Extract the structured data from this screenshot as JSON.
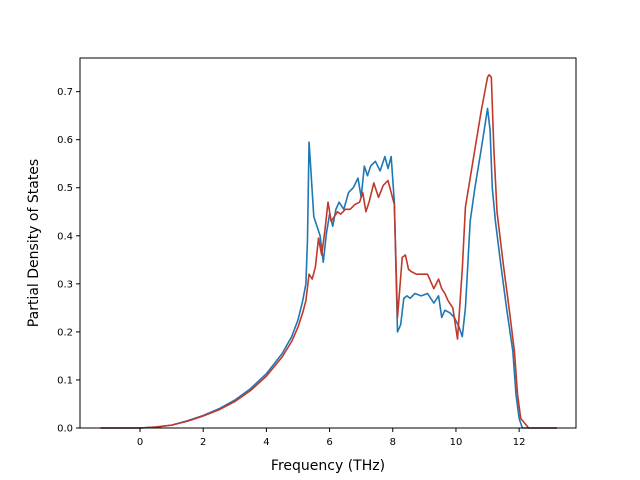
{
  "chart_data": {
    "type": "line",
    "title": "",
    "xlabel": "Frequency (THz)",
    "ylabel": "Partial Density of States",
    "xlim": [
      -1.9,
      13.8
    ],
    "ylim": [
      0.0,
      0.77
    ],
    "xticks": [
      0,
      2,
      4,
      6,
      8,
      10,
      12
    ],
    "yticks": [
      0.0,
      0.1,
      0.2,
      0.3,
      0.4,
      0.5,
      0.6,
      0.7
    ],
    "xtick_labels": [
      "0",
      "2",
      "4",
      "6",
      "8",
      "10",
      "12"
    ],
    "ytick_labels": [
      "0.0",
      "0.1",
      "0.2",
      "0.3",
      "0.4",
      "0.5",
      "0.6",
      "0.7"
    ],
    "grid": false,
    "legend": "none",
    "series": [
      {
        "color": "#1f77b4",
        "x": [
          -1.25,
          -0.5,
          0.0,
          0.5,
          1.0,
          1.5,
          2.0,
          2.5,
          3.0,
          3.5,
          4.0,
          4.5,
          4.8,
          5.0,
          5.15,
          5.25,
          5.3,
          5.35,
          5.4,
          5.5,
          5.7,
          5.8,
          5.9,
          6.0,
          6.1,
          6.2,
          6.3,
          6.45,
          6.6,
          6.75,
          6.9,
          7.0,
          7.1,
          7.2,
          7.3,
          7.45,
          7.6,
          7.75,
          7.85,
          7.95,
          8.05,
          8.15,
          8.25,
          8.35,
          8.45,
          8.55,
          8.7,
          8.9,
          9.1,
          9.3,
          9.45,
          9.55,
          9.65,
          9.8,
          9.95,
          10.1,
          10.2,
          10.3,
          10.45,
          10.6,
          10.8,
          11.0,
          11.08,
          11.15,
          11.25,
          11.4,
          11.6,
          11.8,
          11.9,
          12.0,
          12.1,
          12.3,
          12.6,
          13.2
        ],
        "y": [
          0.0,
          0.0,
          0.0,
          0.002,
          0.006,
          0.015,
          0.026,
          0.04,
          0.058,
          0.082,
          0.113,
          0.155,
          0.19,
          0.225,
          0.265,
          0.3,
          0.39,
          0.595,
          0.545,
          0.44,
          0.4,
          0.345,
          0.405,
          0.445,
          0.42,
          0.455,
          0.47,
          0.455,
          0.49,
          0.5,
          0.52,
          0.48,
          0.545,
          0.525,
          0.545,
          0.555,
          0.535,
          0.565,
          0.54,
          0.565,
          0.47,
          0.2,
          0.215,
          0.27,
          0.275,
          0.27,
          0.28,
          0.275,
          0.28,
          0.26,
          0.275,
          0.23,
          0.245,
          0.24,
          0.23,
          0.21,
          0.19,
          0.25,
          0.43,
          0.5,
          0.58,
          0.665,
          0.62,
          0.5,
          0.43,
          0.35,
          0.25,
          0.16,
          0.07,
          0.02,
          0.0,
          0.0,
          0.0,
          0.0
        ]
      },
      {
        "color": "#c0392b",
        "x": [
          -1.25,
          -0.5,
          0.0,
          0.5,
          1.0,
          1.5,
          2.0,
          2.5,
          3.0,
          3.5,
          4.0,
          4.5,
          4.8,
          5.0,
          5.15,
          5.25,
          5.35,
          5.45,
          5.55,
          5.65,
          5.75,
          5.85,
          5.95,
          6.05,
          6.15,
          6.25,
          6.35,
          6.5,
          6.65,
          6.8,
          6.95,
          7.05,
          7.15,
          7.25,
          7.4,
          7.55,
          7.7,
          7.85,
          7.95,
          8.05,
          8.15,
          8.3,
          8.4,
          8.5,
          8.6,
          8.75,
          8.9,
          9.1,
          9.3,
          9.45,
          9.55,
          9.65,
          9.75,
          9.9,
          10.05,
          10.2,
          10.3,
          10.45,
          10.6,
          10.8,
          11.0,
          11.05,
          11.12,
          11.2,
          11.3,
          11.5,
          11.7,
          11.85,
          11.95,
          12.05,
          12.3,
          12.6,
          13.2
        ],
        "y": [
          0.0,
          0.0,
          0.0,
          0.002,
          0.006,
          0.014,
          0.025,
          0.038,
          0.055,
          0.078,
          0.108,
          0.148,
          0.18,
          0.21,
          0.24,
          0.265,
          0.32,
          0.31,
          0.335,
          0.395,
          0.36,
          0.41,
          0.47,
          0.43,
          0.44,
          0.45,
          0.445,
          0.455,
          0.455,
          0.465,
          0.47,
          0.49,
          0.45,
          0.47,
          0.51,
          0.48,
          0.505,
          0.515,
          0.49,
          0.465,
          0.23,
          0.355,
          0.36,
          0.33,
          0.325,
          0.32,
          0.32,
          0.32,
          0.29,
          0.31,
          0.29,
          0.28,
          0.265,
          0.25,
          0.185,
          0.33,
          0.46,
          0.52,
          0.58,
          0.66,
          0.73,
          0.735,
          0.73,
          0.58,
          0.45,
          0.34,
          0.24,
          0.16,
          0.07,
          0.02,
          0.0,
          0.0,
          0.0
        ]
      }
    ]
  }
}
